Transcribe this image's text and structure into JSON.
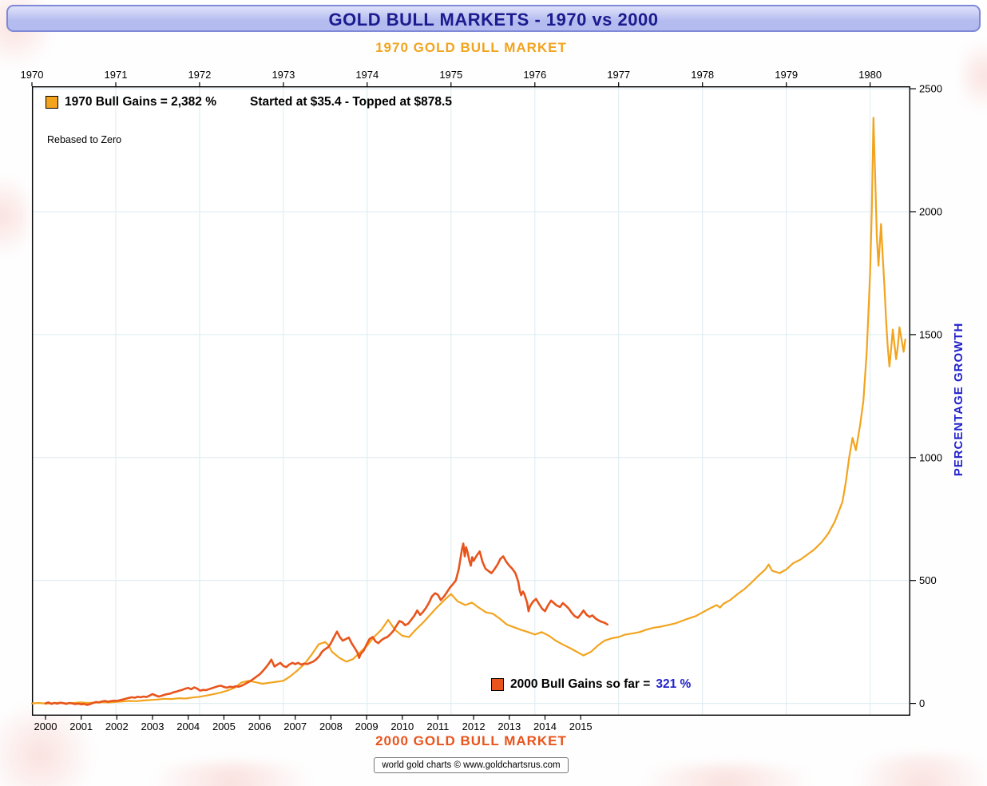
{
  "colors": {
    "gold": "#F2A41E",
    "orange": "#E8541C",
    "navy": "#1B1B8F",
    "blue": "#2222CC",
    "grid": "#DCEBF0",
    "titlebar_bg_top": "#DFE2FA",
    "titlebar_bg_bottom": "#B4BBEE",
    "titlebar_border": "#7E88D6"
  },
  "page": {
    "title": "GOLD BULL MARKETS - 1970 vs 2000",
    "top_subtitle": "1970 GOLD BULL MARKET",
    "bottom_subtitle": "2000 GOLD BULL MARKET",
    "footer": "world gold charts © www.goldchartsrus.com"
  },
  "legend": {
    "bull1970_label": "1970 Bull Gains = 2,382 %",
    "bull1970_range": "Started at $35.4 - Topped at $878.5",
    "rebased_note": "Rebased to Zero",
    "bull2000_label": "2000 Bull Gains so far =",
    "bull2000_value": "321 %"
  },
  "chart_data": {
    "type": "line",
    "title": "GOLD BULL MARKETS - 1970 vs 2000",
    "ylabel": "PERCENTAGE GROWTH",
    "ylim": [
      -50,
      2510
    ],
    "yticks": [
      0,
      500,
      1000,
      1500,
      2000,
      2500
    ],
    "grid": true,
    "top_axis": {
      "label": "1970 GOLD BULL MARKET",
      "ticks": [
        1970,
        1971,
        1972,
        1973,
        1974,
        1975,
        1976,
        1977,
        1978,
        1979,
        1980
      ],
      "domain": [
        1970,
        1980.48
      ]
    },
    "bottom_axis": {
      "label": "2000 GOLD BULL MARKET",
      "ticks": [
        2000,
        2001,
        2002,
        2003,
        2004,
        2005,
        2006,
        2007,
        2008,
        2009,
        2010,
        2011,
        2012,
        2013,
        2014,
        2015
      ],
      "domain": [
        1999.62,
        2024.24
      ]
    },
    "series": [
      {
        "name": "1970 Gold Bull Market (% gain, rebased to zero)",
        "axis": "top",
        "color": "#F2A41E",
        "stroke_width": 2.2,
        "x": [
          1970.0,
          1970.08,
          1970.17,
          1970.25,
          1970.33,
          1970.42,
          1970.5,
          1970.58,
          1970.67,
          1970.75,
          1970.83,
          1970.92,
          1971.0,
          1971.08,
          1971.17,
          1971.25,
          1971.33,
          1971.42,
          1971.5,
          1971.58,
          1971.67,
          1971.75,
          1971.83,
          1971.92,
          1972.0,
          1972.08,
          1972.17,
          1972.25,
          1972.33,
          1972.42,
          1972.5,
          1972.58,
          1972.67,
          1972.75,
          1972.83,
          1972.92,
          1973.0,
          1973.08,
          1973.17,
          1973.25,
          1973.33,
          1973.42,
          1973.5,
          1973.54,
          1973.58,
          1973.67,
          1973.75,
          1973.83,
          1973.92,
          1974.0,
          1974.08,
          1974.17,
          1974.25,
          1974.29,
          1974.33,
          1974.42,
          1974.5,
          1974.58,
          1974.67,
          1974.75,
          1974.83,
          1974.92,
          1975.0,
          1975.04,
          1975.08,
          1975.17,
          1975.25,
          1975.33,
          1975.42,
          1975.5,
          1975.58,
          1975.67,
          1975.75,
          1975.83,
          1975.92,
          1976.0,
          1976.08,
          1976.17,
          1976.25,
          1976.33,
          1976.42,
          1976.5,
          1976.58,
          1976.67,
          1976.75,
          1976.83,
          1976.92,
          1977.0,
          1977.08,
          1977.17,
          1977.25,
          1977.33,
          1977.42,
          1977.5,
          1977.58,
          1977.67,
          1977.75,
          1977.83,
          1977.92,
          1978.0,
          1978.08,
          1978.17,
          1978.21,
          1978.25,
          1978.33,
          1978.42,
          1978.5,
          1978.58,
          1978.67,
          1978.75,
          1978.79,
          1978.83,
          1978.92,
          1979.0,
          1979.08,
          1979.17,
          1979.25,
          1979.33,
          1979.42,
          1979.5,
          1979.58,
          1979.67,
          1979.71,
          1979.75,
          1979.79,
          1979.83,
          1979.88,
          1979.92,
          1979.96,
          1980.0,
          1980.02,
          1980.04,
          1980.06,
          1980.08,
          1980.1,
          1980.13,
          1980.15,
          1980.17,
          1980.19,
          1980.21,
          1980.23,
          1980.25,
          1980.27,
          1980.29,
          1980.31,
          1980.33,
          1980.35,
          1980.38,
          1980.4,
          1980.42
        ],
        "y": [
          0,
          2,
          -1,
          1,
          3,
          0,
          2,
          4,
          2,
          3,
          5,
          4,
          6,
          8,
          10,
          9,
          12,
          14,
          16,
          19,
          18,
          21,
          20,
          24,
          27,
          32,
          38,
          44,
          52,
          64,
          85,
          92,
          86,
          80,
          84,
          88,
          92,
          110,
          135,
          160,
          195,
          240,
          250,
          235,
          210,
          185,
          170,
          180,
          210,
          235,
          270,
          300,
          340,
          320,
          300,
          275,
          270,
          300,
          330,
          360,
          390,
          420,
          445,
          430,
          415,
          400,
          410,
          390,
          370,
          365,
          345,
          320,
          310,
          300,
          290,
          280,
          290,
          275,
          255,
          240,
          225,
          210,
          195,
          210,
          235,
          255,
          265,
          270,
          280,
          285,
          290,
          300,
          308,
          312,
          318,
          325,
          335,
          345,
          355,
          370,
          385,
          400,
          390,
          405,
          420,
          445,
          465,
          490,
          520,
          545,
          565,
          540,
          530,
          545,
          570,
          585,
          605,
          625,
          655,
          690,
          740,
          820,
          900,
          1000,
          1080,
          1030,
          1130,
          1230,
          1430,
          1750,
          2000,
          2382,
          2150,
          1900,
          1780,
          1950,
          1820,
          1700,
          1560,
          1450,
          1370,
          1440,
          1520,
          1460,
          1400,
          1450,
          1530,
          1470,
          1430,
          1480
        ]
      },
      {
        "name": "2000 Gold Bull Market (% gain, rebased to zero)",
        "axis": "bottom",
        "color": "#E8541C",
        "stroke_width": 2.6,
        "x": [
          2000.0,
          2000.08,
          2000.17,
          2000.25,
          2000.33,
          2000.42,
          2000.5,
          2000.58,
          2000.67,
          2000.75,
          2000.83,
          2000.92,
          2001.0,
          2001.08,
          2001.17,
          2001.25,
          2001.33,
          2001.42,
          2001.5,
          2001.58,
          2001.67,
          2001.75,
          2001.83,
          2001.92,
          2002.0,
          2002.08,
          2002.17,
          2002.25,
          2002.33,
          2002.42,
          2002.5,
          2002.58,
          2002.67,
          2002.75,
          2002.83,
          2002.92,
          2003.0,
          2003.08,
          2003.17,
          2003.25,
          2003.33,
          2003.42,
          2003.5,
          2003.58,
          2003.67,
          2003.75,
          2003.83,
          2003.92,
          2004.0,
          2004.08,
          2004.17,
          2004.25,
          2004.33,
          2004.42,
          2004.5,
          2004.58,
          2004.67,
          2004.75,
          2004.83,
          2004.92,
          2005.0,
          2005.08,
          2005.17,
          2005.25,
          2005.33,
          2005.42,
          2005.5,
          2005.58,
          2005.67,
          2005.75,
          2005.83,
          2005.92,
          2006.0,
          2006.08,
          2006.17,
          2006.25,
          2006.33,
          2006.42,
          2006.5,
          2006.58,
          2006.67,
          2006.75,
          2006.83,
          2006.92,
          2007.0,
          2007.08,
          2007.17,
          2007.25,
          2007.33,
          2007.42,
          2007.5,
          2007.58,
          2007.67,
          2007.75,
          2007.83,
          2007.92,
          2008.0,
          2008.08,
          2008.17,
          2008.25,
          2008.33,
          2008.42,
          2008.5,
          2008.58,
          2008.67,
          2008.75,
          2008.79,
          2008.83,
          2008.92,
          2009.0,
          2009.08,
          2009.17,
          2009.25,
          2009.33,
          2009.42,
          2009.5,
          2009.58,
          2009.67,
          2009.75,
          2009.83,
          2009.92,
          2010.0,
          2010.08,
          2010.17,
          2010.25,
          2010.33,
          2010.42,
          2010.5,
          2010.58,
          2010.67,
          2010.75,
          2010.83,
          2010.92,
          2011.0,
          2011.08,
          2011.17,
          2011.25,
          2011.33,
          2011.42,
          2011.5,
          2011.58,
          2011.67,
          2011.71,
          2011.75,
          2011.79,
          2011.83,
          2011.88,
          2011.92,
          2011.96,
          2012.0,
          2012.08,
          2012.17,
          2012.25,
          2012.33,
          2012.42,
          2012.5,
          2012.58,
          2012.67,
          2012.75,
          2012.83,
          2012.92,
          2013.0,
          2013.08,
          2013.17,
          2013.25,
          2013.29,
          2013.33,
          2013.38,
          2013.42,
          2013.5,
          2013.54,
          2013.58,
          2013.67,
          2013.75,
          2013.83,
          2013.92,
          2014.0,
          2014.08,
          2014.17,
          2014.25,
          2014.33,
          2014.42,
          2014.5,
          2014.58,
          2014.67,
          2014.75,
          2014.83,
          2014.92,
          2015.0,
          2015.08,
          2015.17,
          2015.25,
          2015.33,
          2015.42,
          2015.5,
          2015.58,
          2015.67,
          2015.75
        ],
        "y": [
          0,
          4,
          -2,
          2,
          -1,
          3,
          1,
          -2,
          2,
          0,
          -3,
          -1,
          -4,
          -2,
          -6,
          -3,
          2,
          6,
          4,
          8,
          10,
          7,
          9,
          11,
          10,
          13,
          16,
          19,
          22,
          25,
          23,
          27,
          25,
          28,
          26,
          32,
          38,
          33,
          28,
          31,
          35,
          38,
          40,
          45,
          48,
          52,
          55,
          60,
          63,
          58,
          65,
          60,
          52,
          55,
          54,
          58,
          62,
          66,
          70,
          72,
          67,
          64,
          68,
          66,
          70,
          68,
          72,
          78,
          85,
          92,
          100,
          110,
          118,
          130,
          145,
          160,
          178,
          150,
          158,
          165,
          152,
          148,
          158,
          165,
          160,
          165,
          158,
          162,
          160,
          165,
          170,
          178,
          192,
          210,
          220,
          228,
          245,
          268,
          292,
          270,
          255,
          262,
          268,
          245,
          225,
          205,
          185,
          200,
          215,
          240,
          262,
          270,
          252,
          245,
          258,
          265,
          270,
          282,
          295,
          315,
          335,
          330,
          318,
          325,
          340,
          355,
          378,
          360,
          372,
          390,
          410,
          435,
          448,
          442,
          420,
          435,
          452,
          470,
          485,
          500,
          545,
          625,
          650,
          598,
          635,
          615,
          580,
          560,
          595,
          580,
          600,
          618,
          575,
          548,
          538,
          530,
          545,
          565,
          588,
          598,
          575,
          560,
          548,
          530,
          495,
          460,
          440,
          455,
          445,
          410,
          375,
          395,
          415,
          425,
          405,
          385,
          375,
          398,
          418,
          408,
          398,
          392,
          408,
          398,
          385,
          368,
          355,
          348,
          362,
          378,
          360,
          352,
          358,
          345,
          338,
          332,
          328,
          321
        ]
      }
    ]
  }
}
